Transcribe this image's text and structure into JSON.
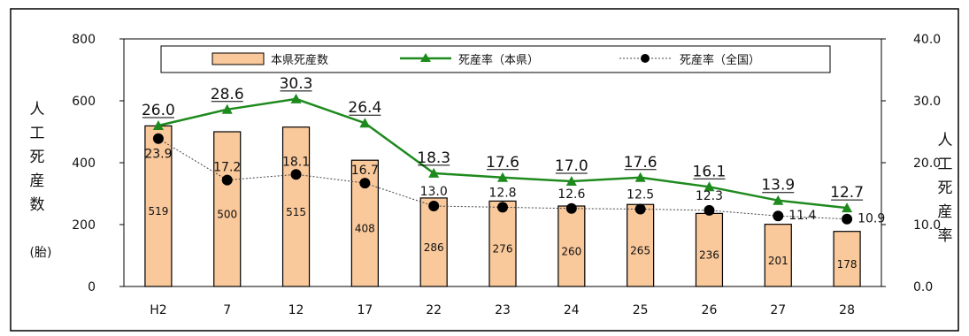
{
  "chart_data": {
    "type": "bar",
    "categories": [
      "H2",
      "7",
      "12",
      "17",
      "22",
      "23",
      "24",
      "25",
      "26",
      "27",
      "28"
    ],
    "left_axis": {
      "label": "人工死産数",
      "unit": "(胎)",
      "ticks": [
        "0",
        "200",
        "400",
        "600",
        "800"
      ],
      "ylim": [
        0,
        800
      ]
    },
    "right_axis": {
      "label": "人工死産率",
      "ticks": [
        "0.0",
        "10.0",
        "20.0",
        "30.0",
        "40.0"
      ],
      "ylim": [
        0,
        40
      ]
    },
    "series": [
      {
        "name": "本県死産数",
        "type": "bar",
        "axis": "left",
        "color": "#f9c89b",
        "values": [
          519,
          500,
          515,
          408,
          286,
          276,
          260,
          265,
          236,
          201,
          178
        ]
      },
      {
        "name": "死産率（本県）",
        "type": "line",
        "axis": "right",
        "color": "#1e8a1e",
        "marker": "triangle",
        "values": [
          26.0,
          28.6,
          30.3,
          26.4,
          18.3,
          17.6,
          17.0,
          17.6,
          16.1,
          13.9,
          12.7
        ]
      },
      {
        "name": "死産率（全国）",
        "type": "line",
        "axis": "right",
        "color": "#000000",
        "marker": "circle",
        "line_style": "dotted",
        "values": [
          23.9,
          17.2,
          18.1,
          16.7,
          13.0,
          12.8,
          12.6,
          12.5,
          12.3,
          11.4,
          10.9
        ]
      }
    ],
    "legend_position": "top",
    "grid": false
  }
}
